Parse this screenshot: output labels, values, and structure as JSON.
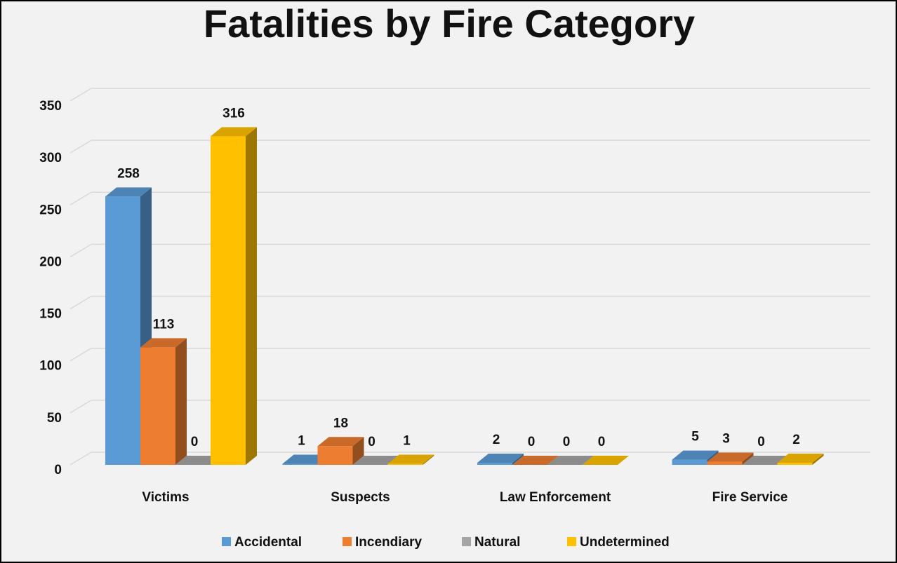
{
  "chart_data": {
    "type": "bar",
    "title": "Fatalities by Fire Category",
    "categories": [
      "Victims",
      "Suspects",
      "Law Enforcement",
      "Fire Service"
    ],
    "series": [
      {
        "name": "Accidental",
        "color": "#5b9bd5",
        "values": [
          258,
          1,
          2,
          5
        ]
      },
      {
        "name": "Incendiary",
        "color": "#ed7d31",
        "values": [
          113,
          18,
          0,
          3
        ]
      },
      {
        "name": "Natural",
        "color": "#a5a5a5",
        "values": [
          0,
          0,
          0,
          0
        ]
      },
      {
        "name": "Undetermined",
        "color": "#ffc000",
        "values": [
          316,
          1,
          0,
          2
        ]
      }
    ],
    "ylim": [
      0,
      350
    ],
    "yticks": [
      0,
      50,
      100,
      150,
      200,
      250,
      300,
      350
    ],
    "grid": true,
    "legend": "bottom"
  }
}
